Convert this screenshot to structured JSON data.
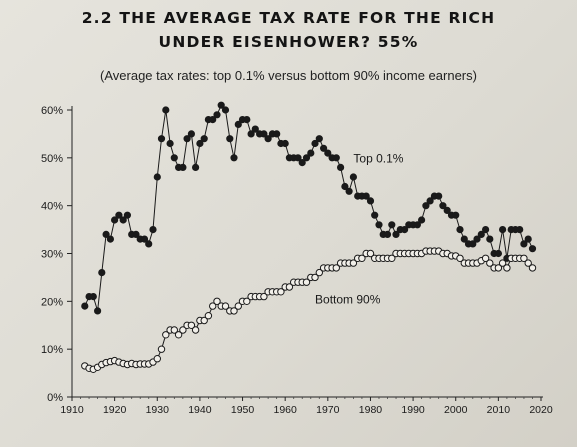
{
  "header": {
    "title_line1": "2.2 THE AVERAGE TAX RATE FOR THE RICH",
    "title_line2": "UNDER EISENHOWER? 55%",
    "subtitle": "(Average tax rates: top 0.1% versus bottom 90% income earners)"
  },
  "chart_data": {
    "type": "line",
    "title": "2.2 THE AVERAGE TAX RATE FOR THE RICH UNDER EISENHOWER? 55%",
    "subtitle": "(Average tax rates: top 0.1% versus bottom 90% income earners)",
    "xlabel": "",
    "ylabel": "",
    "xlim": [
      1910,
      2020
    ],
    "ylim": [
      0,
      60
    ],
    "x_ticks": [
      "1910",
      "1920",
      "1930",
      "1940",
      "1950",
      "1960",
      "1970",
      "1980",
      "1990",
      "2000",
      "2010",
      "2020"
    ],
    "y_ticks": [
      "0%",
      "10%",
      "20%",
      "30%",
      "40%",
      "50%",
      "60%"
    ],
    "grid": false,
    "series": [
      {
        "name": "Top 0.1%",
        "marker": "filled-circle",
        "color": "#1a1a1a",
        "x": [
          1913,
          1914,
          1915,
          1916,
          1917,
          1918,
          1919,
          1920,
          1921,
          1922,
          1923,
          1924,
          1925,
          1926,
          1927,
          1928,
          1929,
          1930,
          1931,
          1932,
          1933,
          1934,
          1935,
          1936,
          1937,
          1938,
          1939,
          1940,
          1941,
          1942,
          1943,
          1944,
          1945,
          1946,
          1947,
          1948,
          1949,
          1950,
          1951,
          1952,
          1953,
          1954,
          1955,
          1956,
          1957,
          1958,
          1959,
          1960,
          1961,
          1962,
          1963,
          1964,
          1965,
          1966,
          1967,
          1968,
          1969,
          1970,
          1971,
          1972,
          1973,
          1974,
          1975,
          1976,
          1977,
          1978,
          1979,
          1980,
          1981,
          1982,
          1983,
          1984,
          1985,
          1986,
          1987,
          1988,
          1989,
          1990,
          1991,
          1992,
          1993,
          1994,
          1995,
          1996,
          1997,
          1998,
          1999,
          2000,
          2001,
          2002,
          2003,
          2004,
          2005,
          2006,
          2007,
          2008,
          2009,
          2010,
          2011,
          2012,
          2013,
          2014,
          2015,
          2016,
          2017,
          2018
        ],
        "values": [
          19,
          21,
          21,
          18,
          26,
          34,
          33,
          37,
          38,
          37,
          38,
          34,
          34,
          33,
          33,
          32,
          35,
          46,
          54,
          60,
          53,
          50,
          48,
          48,
          54,
          55,
          48,
          53,
          54,
          58,
          58,
          59,
          61,
          60,
          54,
          50,
          57,
          58,
          58,
          55,
          56,
          55,
          55,
          54,
          55,
          55,
          53,
          53,
          50,
          50,
          50,
          49,
          50,
          51,
          53,
          54,
          52,
          51,
          50,
          50,
          48,
          44,
          43,
          46,
          42,
          42,
          42,
          41,
          38,
          36,
          34,
          34,
          36,
          34,
          35,
          35,
          36,
          36,
          36,
          37,
          40,
          41,
          42,
          42,
          40,
          39,
          38,
          38,
          35,
          33,
          32,
          32,
          33,
          34,
          35,
          33,
          30,
          30,
          35,
          29,
          35,
          35,
          35,
          32,
          33,
          31
        ]
      },
      {
        "name": "Bottom 90%",
        "marker": "open-circle",
        "color": "#1a1a1a",
        "x": [
          1913,
          1914,
          1915,
          1916,
          1917,
          1918,
          1919,
          1920,
          1921,
          1922,
          1923,
          1924,
          1925,
          1926,
          1927,
          1928,
          1929,
          1930,
          1931,
          1932,
          1933,
          1934,
          1935,
          1936,
          1937,
          1938,
          1939,
          1940,
          1941,
          1942,
          1943,
          1944,
          1945,
          1946,
          1947,
          1948,
          1949,
          1950,
          1951,
          1952,
          1953,
          1954,
          1955,
          1956,
          1957,
          1958,
          1959,
          1960,
          1961,
          1962,
          1963,
          1964,
          1965,
          1966,
          1967,
          1968,
          1969,
          1970,
          1971,
          1972,
          1973,
          1974,
          1975,
          1976,
          1977,
          1978,
          1979,
          1980,
          1981,
          1982,
          1983,
          1984,
          1985,
          1986,
          1987,
          1988,
          1989,
          1990,
          1991,
          1992,
          1993,
          1994,
          1995,
          1996,
          1997,
          1998,
          1999,
          2000,
          2001,
          2002,
          2003,
          2004,
          2005,
          2006,
          2007,
          2008,
          2009,
          2010,
          2011,
          2012,
          2013,
          2014,
          2015,
          2016,
          2017,
          2018
        ],
        "values": [
          6.5,
          6,
          5.8,
          6.2,
          6.8,
          7.2,
          7.4,
          7.6,
          7.3,
          7,
          6.8,
          7,
          6.8,
          6.9,
          6.9,
          6.9,
          7.3,
          8,
          10,
          13,
          14,
          14,
          13,
          14,
          15,
          15,
          14,
          16,
          16,
          17,
          19,
          20,
          19,
          19,
          18,
          18,
          19,
          20,
          20,
          21,
          21,
          21,
          21,
          22,
          22,
          22,
          22,
          23,
          23,
          24,
          24,
          24,
          24,
          25,
          25,
          26,
          27,
          27,
          27,
          27,
          28,
          28,
          28,
          28,
          29,
          29,
          30,
          30,
          29,
          29,
          29,
          29,
          29,
          30,
          30,
          30,
          30,
          30,
          30,
          30,
          30.5,
          30.5,
          30.5,
          30.5,
          30,
          30,
          29.5,
          29.5,
          29,
          28,
          28,
          28,
          28,
          28.5,
          29,
          28,
          27,
          27,
          28,
          27,
          29,
          29,
          29,
          29,
          28,
          27
        ]
      }
    ],
    "annotations": [
      {
        "text": "Top 0.1%",
        "x": 1976,
        "y": 49
      },
      {
        "text": "Bottom 90%",
        "x": 1967,
        "y": 19.5
      }
    ]
  }
}
